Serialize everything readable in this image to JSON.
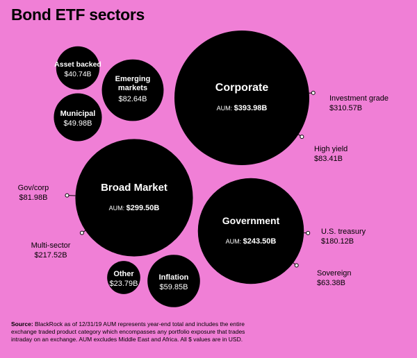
{
  "chart_data": {
    "type": "bubble",
    "title": "Bond ETF sectors",
    "aum_prefix": "AUM:",
    "sectors": [
      {
        "id": "corporate",
        "name": "Corporate",
        "value": 393.98,
        "label": "$393.98B",
        "subsectors": [
          {
            "name": "Investment grade",
            "value": 310.57,
            "label": "$310.57B"
          },
          {
            "name": "High yield",
            "value": 83.41,
            "label": "$83.41B"
          }
        ]
      },
      {
        "id": "broad-market",
        "name": "Broad Market",
        "value": 299.5,
        "label": "$299.50B",
        "subsectors": [
          {
            "name": "Gov/corp",
            "value": 81.98,
            "label": "$81.98B"
          },
          {
            "name": "Multi-sector",
            "value": 217.52,
            "label": "$217.52B"
          }
        ]
      },
      {
        "id": "government",
        "name": "Government",
        "value": 243.5,
        "label": "$243.50B",
        "subsectors": [
          {
            "name": "U.S. treasury",
            "value": 180.12,
            "label": "$180.12B"
          },
          {
            "name": "Sovereign",
            "value": 63.38,
            "label": "$63.38B"
          }
        ]
      },
      {
        "id": "emerging-markets",
        "name": "Emerging markets",
        "value": 82.64,
        "label": "$82.64B",
        "subsectors": []
      },
      {
        "id": "inflation",
        "name": "Inflation",
        "value": 59.85,
        "label": "$59.85B",
        "subsectors": []
      },
      {
        "id": "municipal",
        "name": "Municipal",
        "value": 49.98,
        "label": "$49.98B",
        "subsectors": []
      },
      {
        "id": "asset-backed",
        "name": "Asset backed",
        "value": 40.74,
        "label": "$40.74B",
        "subsectors": []
      },
      {
        "id": "other",
        "name": "Other",
        "value": 23.79,
        "label": "$23.79B",
        "subsectors": []
      }
    ]
  },
  "source": {
    "label": "Source:",
    "text": " BlackRock as of 12/31/19 AUM represents year-end total and includes the entire exchange traded product category which encompasses any portfolio exposure that trades intraday on an exchange. AUM excludes Middle East and Africa. All $ values are in USD."
  },
  "colors": {
    "background": "#f07fd6",
    "bubble": "#000000",
    "bubble_text": "#ffffff"
  }
}
